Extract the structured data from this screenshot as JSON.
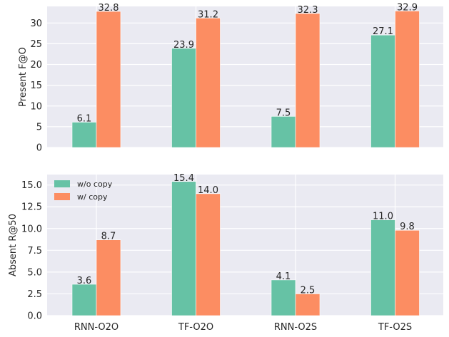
{
  "chart_data": [
    {
      "type": "bar",
      "categories": [
        "RNN-O2O",
        "TF-O2O",
        "RNN-O2S",
        "TF-O2S"
      ],
      "series": [
        {
          "name": "w/o copy",
          "values": [
            6.1,
            23.9,
            7.5,
            27.1
          ],
          "color": "#66c2a5"
        },
        {
          "name": "w/ copy",
          "values": [
            32.8,
            31.2,
            32.3,
            32.9
          ],
          "color": "#fc8d62"
        }
      ],
      "title": "",
      "xlabel": "",
      "ylabel": "Present F@O",
      "ylim": [
        0,
        34
      ],
      "yticks": [
        0,
        5,
        10,
        15,
        20,
        25,
        30
      ],
      "ytick_labels": [
        "0",
        "5",
        "10",
        "15",
        "20",
        "25",
        "30"
      ],
      "show_xtick_labels": false,
      "legend": false,
      "grid": true
    },
    {
      "type": "bar",
      "categories": [
        "RNN-O2O",
        "TF-O2O",
        "RNN-O2S",
        "TF-O2S"
      ],
      "series": [
        {
          "name": "w/o copy",
          "values": [
            3.6,
            15.4,
            4.1,
            11.0
          ],
          "color": "#66c2a5"
        },
        {
          "name": "w/ copy",
          "values": [
            8.7,
            14.0,
            2.5,
            9.8
          ],
          "color": "#fc8d62"
        }
      ],
      "title": "",
      "xlabel": "",
      "ylabel": "Absent R@50",
      "ylim": [
        0,
        16.2
      ],
      "yticks": [
        0,
        2.5,
        5,
        7.5,
        10,
        12.5,
        15
      ],
      "ytick_labels": [
        "0.0",
        "2.5",
        "5.0",
        "7.5",
        "10.0",
        "12.5",
        "15.0"
      ],
      "show_xtick_labels": true,
      "legend": true,
      "legend_position": "top-left",
      "grid": true
    }
  ]
}
